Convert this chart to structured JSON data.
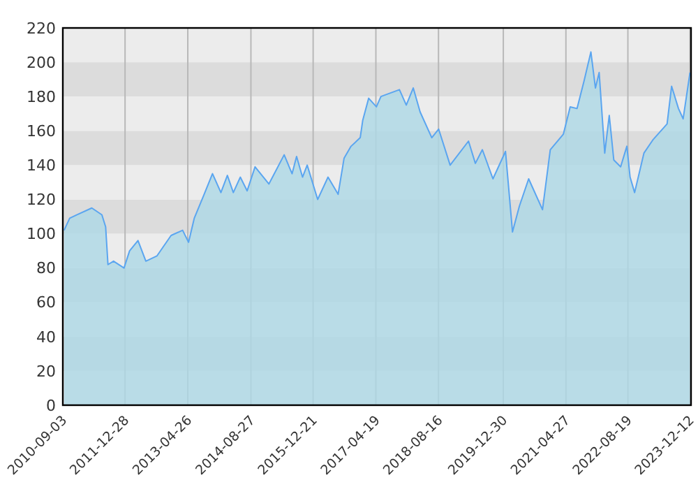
{
  "chart_data": {
    "type": "area",
    "grid": true,
    "x": [
      "2010-09-13",
      "2010-10-26",
      "2010-12-19",
      "2011-04-15",
      "2011-07-02",
      "2011-07-31",
      "2011-08-18",
      "2011-09-30",
      "2011-12-20",
      "2012-02-01",
      "2012-04-06",
      "2012-06-06",
      "2012-08-30",
      "2012-12-18",
      "2013-03-17",
      "2013-05-02",
      "2013-06-15",
      "2013-08-25",
      "2013-11-03",
      "2014-01-07",
      "2014-02-26",
      "2014-04-13",
      "2014-06-06",
      "2014-07-29",
      "2014-09-28",
      "2015-01-13",
      "2015-05-11",
      "2015-07-11",
      "2015-08-15",
      "2015-09-30",
      "2015-11-05",
      "2016-01-25",
      "2016-04-14",
      "2016-07-01",
      "2016-08-16",
      "2016-10-09",
      "2016-12-19",
      "2017-01-07",
      "2017-02-22",
      "2017-04-23",
      "2017-05-28",
      "2017-10-18",
      "2017-12-10",
      "2018-02-02",
      "2018-03-27",
      "2018-06-25",
      "2018-08-17",
      "2018-11-14",
      "2019-04-05",
      "2019-05-28",
      "2019-07-21",
      "2019-10-11",
      "2020-01-16",
      "2020-03-10",
      "2020-05-02",
      "2020-07-13",
      "2020-10-28",
      "2020-12-27",
      "2021-04-07",
      "2021-05-30",
      "2021-07-22",
      "2021-09-14",
      "2021-11-06",
      "2021-12-11",
      "2022-01-09",
      "2022-02-21",
      "2022-03-28",
      "2022-05-02",
      "2022-06-24",
      "2022-08-11",
      "2022-09-05",
      "2022-10-10",
      "2022-12-21",
      "2023-03-03",
      "2023-06-18",
      "2023-07-23",
      "2023-09-14",
      "2023-10-20",
      "2023-12-12"
    ],
    "series": [
      {
        "color": "#5aa5f0",
        "values": [
          102,
          109,
          111,
          115,
          111,
          104,
          82,
          84,
          80,
          90,
          96,
          84,
          87,
          99,
          102,
          95,
          109,
          122,
          135,
          124,
          134,
          124,
          133,
          125,
          139,
          129,
          146,
          135,
          145,
          133,
          140,
          120,
          133,
          123,
          144,
          151,
          156,
          166,
          179,
          174,
          180,
          184,
          175,
          185,
          171,
          156,
          161,
          140,
          154,
          141,
          149,
          132,
          148,
          101,
          116,
          132,
          114,
          149,
          158,
          174,
          173,
          189,
          206,
          185,
          194,
          147,
          169,
          143,
          139,
          151,
          133,
          124,
          147,
          155,
          164,
          186,
          173,
          167,
          194
        ]
      }
    ],
    "xlim": [
      "2010-09-03",
      "2023-12-20"
    ],
    "xticks": [
      "2010-09-03",
      "2011-12-28",
      "2013-04-26",
      "2014-08-27",
      "2015-12-21",
      "2017-04-19",
      "2018-08-16",
      "2019-12-30",
      "2021-04-27",
      "2022-08-19",
      "2023-12-12"
    ],
    "ylim": [
      0,
      220
    ],
    "yticks": [
      0,
      20,
      40,
      60,
      80,
      100,
      120,
      140,
      160,
      180,
      200,
      220
    ]
  }
}
